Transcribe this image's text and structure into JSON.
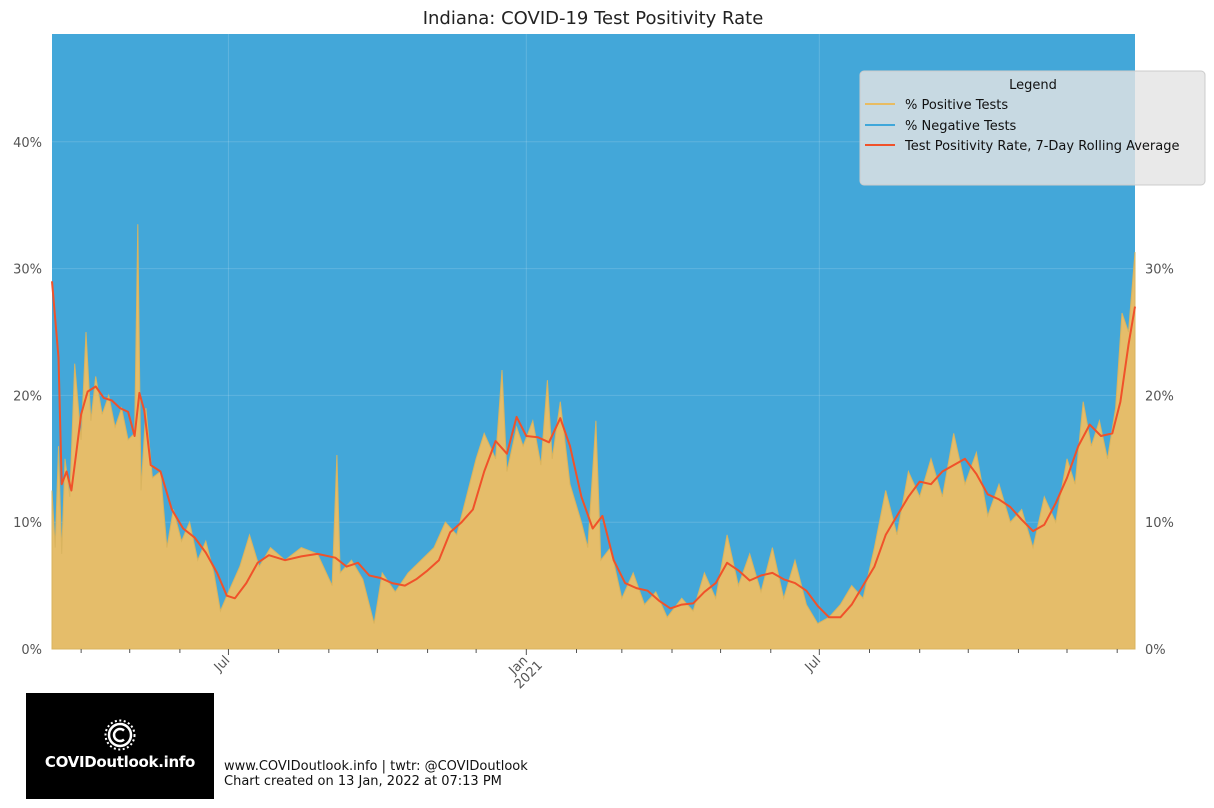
{
  "chart_data": {
    "type": "area",
    "title": "Indiana: COVID-19 Test Positivity Rate",
    "x_start": "2020-03-14",
    "x_end": "2022-01-12",
    "y_ticks": [
      {
        "value": 0,
        "label": "0%"
      },
      {
        "value": 10,
        "label": "10%"
      },
      {
        "value": 20,
        "label": "20%"
      },
      {
        "value": 30,
        "label": "30%"
      },
      {
        "value": 40,
        "label": "40%"
      }
    ],
    "right_y_ticks": [
      {
        "value": 0,
        "label": "0%"
      },
      {
        "value": 10,
        "label": "10%"
      },
      {
        "value": 20,
        "label": "20%"
      },
      {
        "value": 30,
        "label": "30%"
      }
    ],
    "ylim": [
      0,
      48.5
    ],
    "x_ticks": [
      {
        "date": "2020-07-01",
        "label": "Jul",
        "label2": ""
      },
      {
        "date": "2021-01-01",
        "label": "Jan",
        "label2": "2021"
      },
      {
        "date": "2021-07-01",
        "label": "Jul",
        "label2": ""
      }
    ],
    "minor_ticks": [
      "2020-04-01",
      "2020-05-01",
      "2020-06-01",
      "2020-08-01",
      "2020-09-01",
      "2020-10-01",
      "2020-11-01",
      "2020-12-01",
      "2021-02-01",
      "2021-03-01",
      "2021-04-01",
      "2021-05-01",
      "2021-06-01",
      "2021-08-01",
      "2021-09-01",
      "2021-10-01",
      "2021-11-01",
      "2021-12-01",
      "2022-01-01"
    ],
    "legend": {
      "title": "Legend",
      "placement": "top-right",
      "entries": [
        {
          "label": "% Positive Tests",
          "color": "#e8bc62"
        },
        {
          "label": "% Negative Tests",
          "color": "#3fa7da"
        },
        {
          "label": "Test Positivity Rate, 7-Day Rolling Average",
          "color": "#f0522a"
        }
      ]
    },
    "series": [
      {
        "name": "Test Positivity Rate, 7-Day Rolling Average",
        "color": "#f0522a",
        "points": [
          [
            "2020-03-14",
            29.0
          ],
          [
            "2020-03-18",
            23.0
          ],
          [
            "2020-03-20",
            13.0
          ],
          [
            "2020-03-23",
            14.0
          ],
          [
            "2020-03-26",
            12.5
          ],
          [
            "2020-03-29",
            15.5
          ],
          [
            "2020-04-01",
            18.5
          ],
          [
            "2020-04-05",
            20.3
          ],
          [
            "2020-04-10",
            20.7
          ],
          [
            "2020-04-15",
            19.8
          ],
          [
            "2020-04-20",
            19.6
          ],
          [
            "2020-04-25",
            19.0
          ],
          [
            "2020-04-30",
            18.7
          ],
          [
            "2020-05-04",
            16.8
          ],
          [
            "2020-05-07",
            20.2
          ],
          [
            "2020-05-10",
            18.8
          ],
          [
            "2020-05-14",
            14.5
          ],
          [
            "2020-05-20",
            14.0
          ],
          [
            "2020-05-27",
            11.0
          ],
          [
            "2020-06-03",
            9.5
          ],
          [
            "2020-06-10",
            8.8
          ],
          [
            "2020-06-17",
            7.6
          ],
          [
            "2020-06-24",
            6.0
          ],
          [
            "2020-06-30",
            4.2
          ],
          [
            "2020-07-05",
            4.0
          ],
          [
            "2020-07-12",
            5.2
          ],
          [
            "2020-07-19",
            6.8
          ],
          [
            "2020-07-26",
            7.4
          ],
          [
            "2020-08-05",
            7.0
          ],
          [
            "2020-08-15",
            7.3
          ],
          [
            "2020-08-25",
            7.5
          ],
          [
            "2020-09-05",
            7.2
          ],
          [
            "2020-09-12",
            6.5
          ],
          [
            "2020-09-19",
            6.8
          ],
          [
            "2020-09-26",
            5.8
          ],
          [
            "2020-10-03",
            5.6
          ],
          [
            "2020-10-10",
            5.2
          ],
          [
            "2020-10-18",
            5.0
          ],
          [
            "2020-10-25",
            5.5
          ],
          [
            "2020-11-01",
            6.2
          ],
          [
            "2020-11-08",
            7.0
          ],
          [
            "2020-11-15",
            9.2
          ],
          [
            "2020-11-22",
            10.0
          ],
          [
            "2020-11-29",
            11.0
          ],
          [
            "2020-12-06",
            14.0
          ],
          [
            "2020-12-13",
            16.4
          ],
          [
            "2020-12-20",
            15.4
          ],
          [
            "2020-12-26",
            18.3
          ],
          [
            "2021-01-01",
            16.8
          ],
          [
            "2021-01-08",
            16.7
          ],
          [
            "2021-01-15",
            16.3
          ],
          [
            "2021-01-22",
            18.2
          ],
          [
            "2021-01-28",
            16.0
          ],
          [
            "2021-02-04",
            12.0
          ],
          [
            "2021-02-11",
            9.5
          ],
          [
            "2021-02-17",
            10.5
          ],
          [
            "2021-02-24",
            7.0
          ],
          [
            "2021-03-03",
            5.2
          ],
          [
            "2021-03-10",
            4.8
          ],
          [
            "2021-03-17",
            4.6
          ],
          [
            "2021-03-24",
            3.8
          ],
          [
            "2021-03-31",
            3.2
          ],
          [
            "2021-04-07",
            3.5
          ],
          [
            "2021-04-14",
            3.6
          ],
          [
            "2021-04-21",
            4.5
          ],
          [
            "2021-04-28",
            5.2
          ],
          [
            "2021-05-05",
            6.8
          ],
          [
            "2021-05-12",
            6.2
          ],
          [
            "2021-05-19",
            5.4
          ],
          [
            "2021-05-26",
            5.8
          ],
          [
            "2021-06-02",
            6.0
          ],
          [
            "2021-06-09",
            5.5
          ],
          [
            "2021-06-16",
            5.2
          ],
          [
            "2021-06-23",
            4.6
          ],
          [
            "2021-06-30",
            3.4
          ],
          [
            "2021-07-07",
            2.5
          ],
          [
            "2021-07-14",
            2.5
          ],
          [
            "2021-07-21",
            3.5
          ],
          [
            "2021-07-28",
            5.0
          ],
          [
            "2021-08-04",
            6.5
          ],
          [
            "2021-08-11",
            9.0
          ],
          [
            "2021-08-18",
            10.5
          ],
          [
            "2021-08-25",
            12.0
          ],
          [
            "2021-09-01",
            13.2
          ],
          [
            "2021-09-08",
            13.0
          ],
          [
            "2021-09-15",
            14.0
          ],
          [
            "2021-09-22",
            14.5
          ],
          [
            "2021-09-29",
            15.0
          ],
          [
            "2021-10-06",
            13.8
          ],
          [
            "2021-10-13",
            12.2
          ],
          [
            "2021-10-20",
            11.8
          ],
          [
            "2021-10-27",
            11.2
          ],
          [
            "2021-11-03",
            10.2
          ],
          [
            "2021-11-10",
            9.3
          ],
          [
            "2021-11-17",
            9.8
          ],
          [
            "2021-11-24",
            11.5
          ],
          [
            "2021-12-01",
            13.5
          ],
          [
            "2021-12-08",
            16.0
          ],
          [
            "2021-12-15",
            17.7
          ],
          [
            "2021-12-22",
            16.8
          ],
          [
            "2021-12-29",
            17.0
          ],
          [
            "2022-01-03",
            19.5
          ],
          [
            "2022-01-08",
            24.0
          ],
          [
            "2022-01-12",
            27.0
          ]
        ]
      },
      {
        "name": "% Positive Tests",
        "color": "#e8bc62",
        "points": [
          [
            "2020-03-14",
            12.5
          ],
          [
            "2020-03-16",
            8.0
          ],
          [
            "2020-03-18",
            16.0
          ],
          [
            "2020-03-20",
            7.5
          ],
          [
            "2020-03-22",
            15.0
          ],
          [
            "2020-03-25",
            12.0
          ],
          [
            "2020-03-28",
            22.5
          ],
          [
            "2020-04-01",
            16.5
          ],
          [
            "2020-04-04",
            25.0
          ],
          [
            "2020-04-07",
            18.0
          ],
          [
            "2020-04-10",
            21.5
          ],
          [
            "2020-04-14",
            18.5
          ],
          [
            "2020-04-18",
            20.0
          ],
          [
            "2020-04-22",
            17.5
          ],
          [
            "2020-04-26",
            19.0
          ],
          [
            "2020-04-30",
            16.5
          ],
          [
            "2020-05-04",
            17.0
          ],
          [
            "2020-05-06",
            33.5
          ],
          [
            "2020-05-08",
            12.5
          ],
          [
            "2020-05-11",
            19.0
          ],
          [
            "2020-05-15",
            13.5
          ],
          [
            "2020-05-20",
            14.0
          ],
          [
            "2020-05-24",
            8.0
          ],
          [
            "2020-05-28",
            11.0
          ],
          [
            "2020-06-02",
            8.5
          ],
          [
            "2020-06-07",
            10.0
          ],
          [
            "2020-06-12",
            7.0
          ],
          [
            "2020-06-17",
            8.5
          ],
          [
            "2020-06-22",
            6.0
          ],
          [
            "2020-06-26",
            3.0
          ],
          [
            "2020-07-01",
            4.5
          ],
          [
            "2020-07-08",
            6.5
          ],
          [
            "2020-07-14",
            9.0
          ],
          [
            "2020-07-20",
            6.5
          ],
          [
            "2020-07-27",
            8.0
          ],
          [
            "2020-08-05",
            7.0
          ],
          [
            "2020-08-15",
            8.0
          ],
          [
            "2020-08-25",
            7.5
          ],
          [
            "2020-09-03",
            5.0
          ],
          [
            "2020-09-06",
            15.3
          ],
          [
            "2020-09-08",
            6.0
          ],
          [
            "2020-09-15",
            7.0
          ],
          [
            "2020-09-22",
            5.5
          ],
          [
            "2020-09-29",
            2.0
          ],
          [
            "2020-10-04",
            6.0
          ],
          [
            "2020-10-12",
            4.5
          ],
          [
            "2020-10-20",
            6.0
          ],
          [
            "2020-10-28",
            7.0
          ],
          [
            "2020-11-05",
            8.0
          ],
          [
            "2020-11-12",
            10.0
          ],
          [
            "2020-11-19",
            9.0
          ],
          [
            "2020-11-26",
            12.5
          ],
          [
            "2020-12-01",
            15.0
          ],
          [
            "2020-12-06",
            17.0
          ],
          [
            "2020-12-13",
            15.0
          ],
          [
            "2020-12-17",
            22.0
          ],
          [
            "2020-12-20",
            14.0
          ],
          [
            "2020-12-26",
            17.5
          ],
          [
            "2020-12-30",
            16.0
          ],
          [
            "2021-01-05",
            18.0
          ],
          [
            "2021-01-10",
            14.5
          ],
          [
            "2021-01-14",
            21.2
          ],
          [
            "2021-01-17",
            15.0
          ],
          [
            "2021-01-22",
            19.5
          ],
          [
            "2021-01-28",
            13.0
          ],
          [
            "2021-02-04",
            10.0
          ],
          [
            "2021-02-08",
            8.0
          ],
          [
            "2021-02-13",
            18.0
          ],
          [
            "2021-02-16",
            7.0
          ],
          [
            "2021-02-22",
            8.0
          ],
          [
            "2021-03-01",
            4.0
          ],
          [
            "2021-03-08",
            6.0
          ],
          [
            "2021-03-15",
            3.5
          ],
          [
            "2021-03-22",
            4.5
          ],
          [
            "2021-03-29",
            2.5
          ],
          [
            "2021-04-07",
            4.0
          ],
          [
            "2021-04-14",
            3.0
          ],
          [
            "2021-04-21",
            6.0
          ],
          [
            "2021-04-28",
            4.0
          ],
          [
            "2021-05-05",
            9.0
          ],
          [
            "2021-05-12",
            5.0
          ],
          [
            "2021-05-19",
            7.5
          ],
          [
            "2021-05-26",
            4.5
          ],
          [
            "2021-06-02",
            8.0
          ],
          [
            "2021-06-09",
            4.0
          ],
          [
            "2021-06-16",
            7.0
          ],
          [
            "2021-06-23",
            3.5
          ],
          [
            "2021-06-30",
            2.0
          ],
          [
            "2021-07-07",
            2.5
          ],
          [
            "2021-07-14",
            3.5
          ],
          [
            "2021-07-21",
            5.0
          ],
          [
            "2021-07-28",
            4.0
          ],
          [
            "2021-08-04",
            8.0
          ],
          [
            "2021-08-11",
            12.5
          ],
          [
            "2021-08-18",
            9.0
          ],
          [
            "2021-08-25",
            14.0
          ],
          [
            "2021-09-01",
            12.0
          ],
          [
            "2021-09-08",
            15.0
          ],
          [
            "2021-09-15",
            12.0
          ],
          [
            "2021-09-22",
            17.0
          ],
          [
            "2021-09-29",
            13.0
          ],
          [
            "2021-10-06",
            15.5
          ],
          [
            "2021-10-13",
            10.5
          ],
          [
            "2021-10-20",
            13.0
          ],
          [
            "2021-10-27",
            10.0
          ],
          [
            "2021-11-03",
            11.0
          ],
          [
            "2021-11-10",
            8.0
          ],
          [
            "2021-11-17",
            12.0
          ],
          [
            "2021-11-24",
            10.0
          ],
          [
            "2021-12-01",
            15.0
          ],
          [
            "2021-12-06",
            13.0
          ],
          [
            "2021-12-11",
            19.5
          ],
          [
            "2021-12-16",
            16.0
          ],
          [
            "2021-12-21",
            18.0
          ],
          [
            "2021-12-26",
            15.0
          ],
          [
            "2021-12-31",
            19.0
          ],
          [
            "2022-01-04",
            26.5
          ],
          [
            "2022-01-08",
            25.0
          ],
          [
            "2022-01-12",
            31.3
          ]
        ]
      }
    ]
  },
  "footer": {
    "line1": "www.COVIDoutlook.info | twtr: @COVIDoutlook",
    "line2": "Chart created on 13 Jan, 2022 at 07:13 PM"
  },
  "logo": {
    "text": "COVIDoutlook.info"
  }
}
